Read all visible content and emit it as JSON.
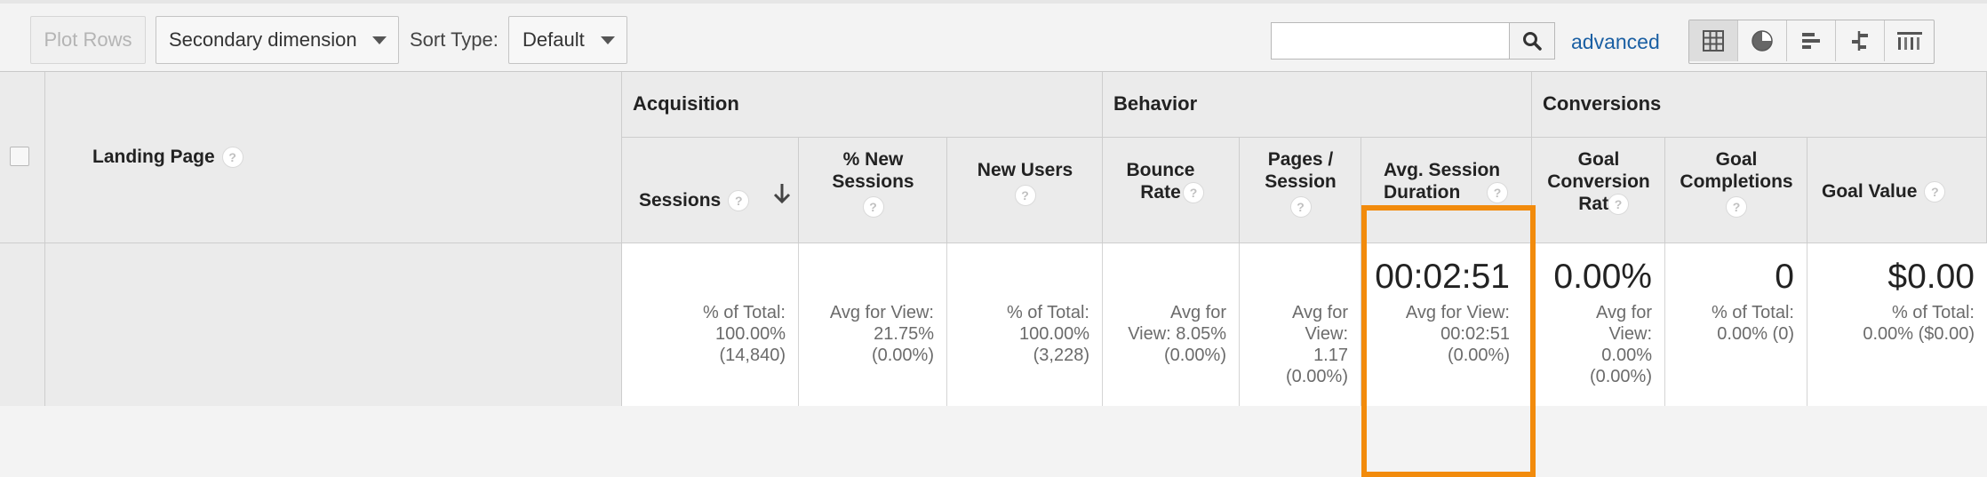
{
  "toolbar": {
    "plot_rows": "Plot Rows",
    "secondary_dimension": "Secondary dimension",
    "sort_type_label": "Sort Type:",
    "sort_type_value": "Default",
    "search_placeholder": "",
    "advanced": "advanced",
    "views": [
      "table-view-icon",
      "pie-view-icon",
      "bar-view-icon",
      "comparison-view-icon",
      "pivot-view-icon"
    ]
  },
  "table": {
    "landing_page_header": "Landing Page",
    "groups": {
      "acquisition": "Acquisition",
      "behavior": "Behavior",
      "conversions": "Conversions"
    },
    "columns": {
      "sessions": "Sessions",
      "new_sessions": "% New Sessions",
      "new_users": "New Users",
      "bounce_rate": "Bounce Rate",
      "pages_session": "Pages / Session",
      "avg_session_duration": "Avg. Session Duration",
      "goal_conversion_rate": "Goal Conversion Rate",
      "goal_completions": "Goal Completions",
      "goal_value": "Goal Value"
    },
    "totals": {
      "sessions_sub": "% of Total:\n100.00%\n(14,840)",
      "new_sessions_sub": "Avg for View:\n21.75%\n(0.00%)",
      "new_users_sub": "% of Total:\n100.00%\n(3,228)",
      "bounce_rate_sub": "Avg for\nView: 8.05%\n(0.00%)",
      "pages_session_sub": "Avg for\nView:\n1.17\n(0.00%)",
      "avg_session_duration": "00:02:51",
      "avg_session_duration_sub": "Avg for View:\n00:02:51\n(0.00%)",
      "goal_conversion_rate": "0.00%",
      "goal_conversion_rate_sub": "Avg for\nView:\n0.00%\n(0.00%)",
      "goal_completions": "0",
      "goal_completions_sub": "% of Total:\n0.00% (0)",
      "goal_value": "$0.00",
      "goal_value_sub": "% of Total:\n0.00% ($0.00)"
    }
  },
  "colors": {
    "highlight": "#f28b0c",
    "link": "#1a5fa3"
  }
}
